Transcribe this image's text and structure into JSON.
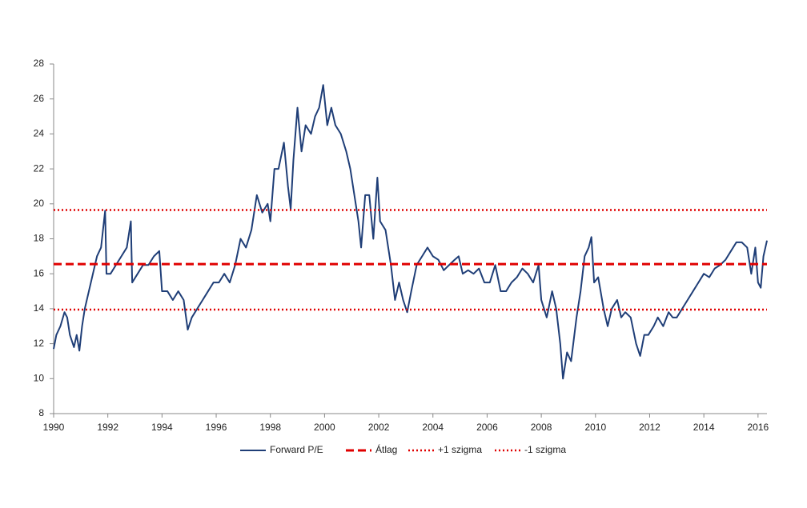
{
  "chart_data": {
    "type": "line",
    "xlim": [
      1990,
      2016.33
    ],
    "xticks": [
      1990,
      1992,
      1994,
      1996,
      1998,
      2000,
      2002,
      2004,
      2006,
      2008,
      2010,
      2012,
      2014,
      2016
    ],
    "ylim": [
      8,
      28
    ],
    "yticks": [
      8,
      10,
      12,
      14,
      16,
      18,
      20,
      22,
      24,
      26,
      28
    ],
    "grid": false,
    "legend": "bottom",
    "series": [
      {
        "name": "Forward P/E",
        "color": "#1f3e77",
        "style": "solid",
        "x": [
          1990.0,
          1990.1,
          1990.25,
          1990.4,
          1990.5,
          1990.6,
          1990.75,
          1990.85,
          1990.95,
          1991.05,
          1991.15,
          1991.3,
          1991.45,
          1991.6,
          1991.75,
          1991.9,
          1991.95,
          1992.1,
          1992.3,
          1992.5,
          1992.7,
          1992.85,
          1992.9,
          1993.1,
          1993.3,
          1993.5,
          1993.7,
          1993.9,
          1994.0,
          1994.2,
          1994.4,
          1994.6,
          1994.8,
          1994.95,
          1995.1,
          1995.3,
          1995.5,
          1995.7,
          1995.9,
          1996.1,
          1996.3,
          1996.5,
          1996.7,
          1996.9,
          1997.1,
          1997.3,
          1997.5,
          1997.7,
          1997.9,
          1998.0,
          1998.15,
          1998.3,
          1998.5,
          1998.65,
          1998.75,
          1998.85,
          1999.0,
          1999.15,
          1999.3,
          1999.5,
          1999.65,
          1999.8,
          1999.95,
          2000.1,
          2000.25,
          2000.4,
          2000.6,
          2000.8,
          2000.95,
          2001.1,
          2001.25,
          2001.35,
          2001.5,
          2001.65,
          2001.8,
          2001.95,
          2002.05,
          2002.25,
          2002.45,
          2002.6,
          2002.75,
          2002.9,
          2003.05,
          2003.2,
          2003.4,
          2003.6,
          2003.8,
          2004.0,
          2004.2,
          2004.4,
          2004.6,
          2004.8,
          2004.95,
          2005.1,
          2005.3,
          2005.5,
          2005.7,
          2005.9,
          2006.1,
          2006.3,
          2006.5,
          2006.7,
          2006.9,
          2007.1,
          2007.3,
          2007.5,
          2007.7,
          2007.9,
          2008.0,
          2008.2,
          2008.4,
          2008.55,
          2008.7,
          2008.8,
          2008.95,
          2009.1,
          2009.3,
          2009.45,
          2009.6,
          2009.75,
          2009.85,
          2009.95,
          2010.1,
          2010.3,
          2010.45,
          2010.6,
          2010.8,
          2010.95,
          2011.1,
          2011.3,
          2011.5,
          2011.65,
          2011.8,
          2011.95,
          2012.15,
          2012.3,
          2012.5,
          2012.7,
          2012.85,
          2013.0,
          2013.2,
          2013.4,
          2013.6,
          2013.8,
          2014.0,
          2014.2,
          2014.4,
          2014.6,
          2014.8,
          2015.0,
          2015.2,
          2015.4,
          2015.6,
          2015.75,
          2015.9,
          2016.0,
          2016.1,
          2016.2,
          2016.33
        ],
        "values": [
          11.7,
          12.5,
          13.0,
          13.8,
          13.5,
          12.5,
          11.8,
          12.5,
          11.6,
          13.0,
          14.0,
          15.0,
          16.0,
          17.0,
          17.5,
          19.6,
          16.0,
          16.0,
          16.5,
          17.0,
          17.5,
          19.0,
          15.5,
          16.0,
          16.5,
          16.5,
          17.0,
          17.3,
          15.0,
          15.0,
          14.5,
          15.0,
          14.5,
          12.8,
          13.5,
          14.0,
          14.5,
          15.0,
          15.5,
          15.5,
          16.0,
          15.5,
          16.5,
          18.0,
          17.5,
          18.5,
          20.5,
          19.5,
          20.0,
          19.0,
          22.0,
          22.0,
          23.5,
          21.0,
          19.7,
          22.5,
          25.5,
          23.0,
          24.5,
          24.0,
          25.0,
          25.5,
          26.8,
          24.5,
          25.5,
          24.5,
          24.0,
          23.0,
          22.0,
          20.5,
          19.0,
          17.5,
          20.5,
          20.5,
          18.0,
          21.5,
          19.0,
          18.5,
          16.5,
          14.5,
          15.5,
          14.5,
          13.8,
          15.0,
          16.5,
          17.0,
          17.5,
          17.0,
          16.8,
          16.2,
          16.5,
          16.8,
          17.0,
          16.0,
          16.2,
          16.0,
          16.3,
          15.5,
          15.5,
          16.5,
          15.0,
          15.0,
          15.5,
          15.8,
          16.3,
          16.0,
          15.5,
          16.5,
          14.5,
          13.5,
          15.0,
          14.0,
          12.0,
          10.0,
          11.5,
          11.0,
          13.5,
          15.0,
          17.0,
          17.5,
          18.1,
          15.5,
          15.8,
          14.0,
          13.0,
          14.0,
          14.5,
          13.5,
          13.8,
          13.5,
          12.0,
          11.3,
          12.5,
          12.5,
          13.0,
          13.5,
          13.0,
          13.8,
          13.5,
          13.5,
          14.0,
          14.5,
          15.0,
          15.5,
          16.0,
          15.8,
          16.3,
          16.5,
          16.8,
          17.3,
          17.8,
          17.8,
          17.5,
          16.0,
          17.5,
          15.5,
          15.2,
          17.0,
          17.9
        ]
      },
      {
        "name": "Átlag",
        "color": "#e00000",
        "style": "dashed",
        "x": [
          1990,
          2016.33
        ],
        "values": [
          16.55,
          16.55
        ]
      },
      {
        "name": "+1 szigma",
        "color": "#e00000",
        "style": "dotted",
        "x": [
          1990,
          2016.33
        ],
        "values": [
          19.65,
          19.65
        ]
      },
      {
        "name": "-1 szigma",
        "color": "#e00000",
        "style": "dotted",
        "x": [
          1990,
          2016.33
        ],
        "values": [
          13.95,
          13.95
        ]
      }
    ]
  }
}
